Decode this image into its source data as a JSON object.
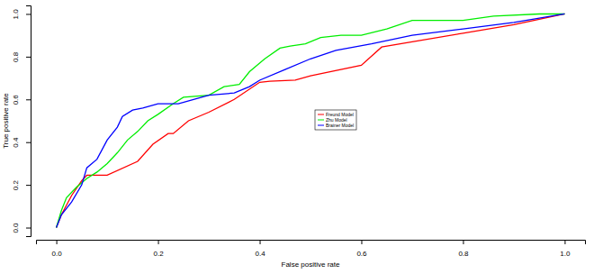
{
  "chart_data": {
    "type": "line",
    "x_label": "False positive rate",
    "y_label": "True positive rate",
    "xlim": [
      -0.04,
      1.04
    ],
    "ylim": [
      -0.04,
      1.04
    ],
    "xticks": [
      {
        "value": 0,
        "label": "0.0"
      },
      0.2,
      0.4,
      0.6,
      0.8,
      {
        "value": 1,
        "label": "1.0"
      }
    ],
    "yticks": [
      {
        "value": 0,
        "label": "0.0"
      },
      0.2,
      0.4,
      0.6,
      0.8,
      {
        "value": 1,
        "label": "1.0"
      }
    ],
    "grid": false,
    "legend": "center",
    "series": [
      {
        "name": "Freund Model",
        "color": "#ff0000",
        "x": [
          0,
          0.01,
          0.03,
          0.05,
          0.06,
          0.1,
          0.16,
          0.19,
          0.22,
          0.23,
          0.26,
          0.3,
          0.35,
          0.4,
          0.42,
          0.47,
          0.5,
          0.6,
          0.64,
          0.7,
          0.8,
          0.9,
          1
        ],
        "values": [
          0,
          0.06,
          0.15,
          0.22,
          0.245,
          0.245,
          0.31,
          0.39,
          0.44,
          0.44,
          0.5,
          0.54,
          0.6,
          0.68,
          0.685,
          0.69,
          0.71,
          0.76,
          0.845,
          0.87,
          0.91,
          0.95,
          1
        ]
      },
      {
        "name": "Zhu Model",
        "color": "#00ee00",
        "x": [
          0,
          0.01,
          0.02,
          0.04,
          0.06,
          0.08,
          0.1,
          0.12,
          0.14,
          0.16,
          0.18,
          0.2,
          0.23,
          0.25,
          0.3,
          0.33,
          0.36,
          0.38,
          0.41,
          0.44,
          0.46,
          0.49,
          0.52,
          0.56,
          0.6,
          0.65,
          0.7,
          0.8,
          0.86,
          0.95,
          1
        ],
        "values": [
          0,
          0.08,
          0.14,
          0.19,
          0.23,
          0.26,
          0.3,
          0.35,
          0.41,
          0.45,
          0.5,
          0.53,
          0.58,
          0.61,
          0.62,
          0.66,
          0.67,
          0.73,
          0.79,
          0.84,
          0.85,
          0.86,
          0.89,
          0.9,
          0.9,
          0.93,
          0.97,
          0.97,
          0.99,
          1,
          1
        ]
      },
      {
        "name": "Brainer Model",
        "color": "#0000ff",
        "x": [
          0,
          0.01,
          0.03,
          0.05,
          0.06,
          0.08,
          0.1,
          0.12,
          0.13,
          0.15,
          0.17,
          0.2,
          0.24,
          0.27,
          0.3,
          0.35,
          0.38,
          0.4,
          0.45,
          0.5,
          0.55,
          0.62,
          0.7,
          0.8,
          0.9,
          1
        ],
        "values": [
          0,
          0.06,
          0.12,
          0.2,
          0.28,
          0.32,
          0.41,
          0.47,
          0.52,
          0.55,
          0.56,
          0.58,
          0.58,
          0.6,
          0.62,
          0.63,
          0.66,
          0.69,
          0.74,
          0.79,
          0.83,
          0.86,
          0.9,
          0.93,
          0.96,
          1
        ]
      }
    ]
  }
}
